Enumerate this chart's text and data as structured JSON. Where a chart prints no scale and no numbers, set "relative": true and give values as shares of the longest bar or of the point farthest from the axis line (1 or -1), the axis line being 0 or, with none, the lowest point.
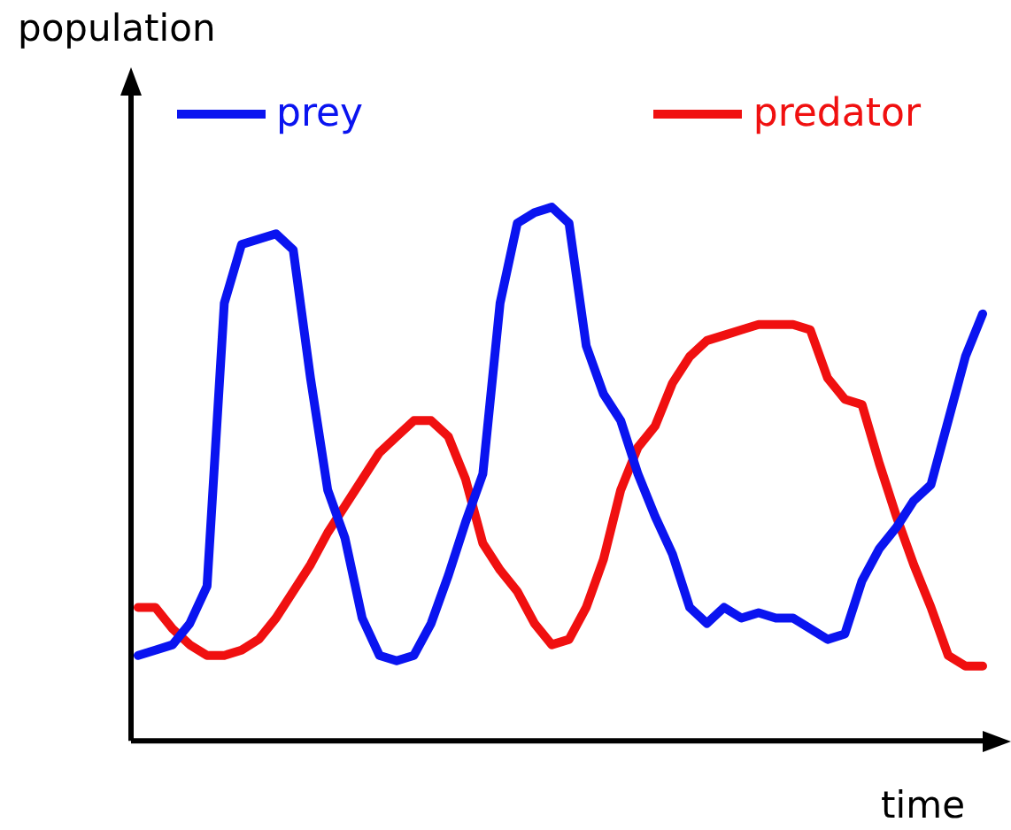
{
  "chart_data": {
    "type": "line",
    "relative": true,
    "xlabel": "time",
    "ylabel": "population",
    "categories": [
      null,
      null,
      null,
      null,
      null,
      null,
      null,
      null,
      null,
      null,
      null,
      null,
      null,
      null,
      null,
      null,
      null,
      null,
      null,
      null,
      null,
      null,
      null,
      null,
      null,
      null,
      null,
      null,
      null,
      null,
      null,
      null,
      null,
      null,
      null,
      null,
      null,
      null,
      null,
      null,
      null,
      null,
      null,
      null,
      null,
      null,
      null,
      null,
      null,
      null
    ],
    "series": [
      {
        "name": "prey",
        "color": "#0a14f0",
        "values": [
          0.16,
          0.17,
          0.18,
          0.22,
          0.29,
          0.82,
          0.93,
          0.94,
          0.95,
          0.92,
          0.68,
          0.47,
          0.38,
          0.23,
          0.16,
          0.15,
          0.16,
          0.22,
          0.31,
          0.41,
          0.5,
          0.82,
          0.97,
          0.99,
          1,
          0.97,
          0.74,
          0.65,
          0.6,
          0.5,
          0.42,
          0.35,
          0.25,
          0.22,
          0.25,
          0.23,
          0.24,
          0.23,
          0.23,
          0.21,
          0.19,
          0.2,
          0.3,
          0.36,
          0.4,
          0.45,
          0.48,
          0.6,
          0.72,
          0.8
        ]
      },
      {
        "name": "predator",
        "color": "#f01010",
        "values": [
          0.25,
          0.25,
          0.21,
          0.18,
          0.16,
          0.16,
          0.17,
          0.19,
          0.23,
          0.28,
          0.33,
          0.39,
          0.44,
          0.49,
          0.54,
          0.57,
          0.6,
          0.6,
          0.57,
          0.49,
          0.37,
          0.32,
          0.28,
          0.22,
          0.18,
          0.19,
          0.25,
          0.34,
          0.47,
          0.55,
          0.59,
          0.67,
          0.72,
          0.75,
          0.76,
          0.77,
          0.78,
          0.78,
          0.78,
          0.77,
          0.68,
          0.64,
          0.63,
          0.52,
          0.42,
          0.33,
          0.25,
          0.16,
          0.14,
          0.14
        ]
      }
    ],
    "legend": "top",
    "grid": false,
    "marker": "none",
    "line_style": "solid"
  }
}
